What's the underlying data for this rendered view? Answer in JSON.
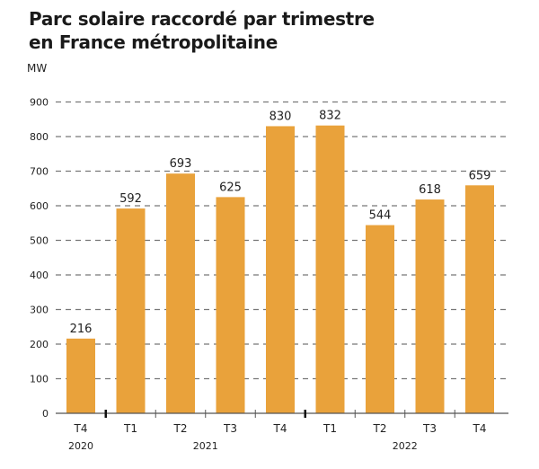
{
  "chart_data": {
    "type": "bar",
    "title_lines": [
      "Parc solaire raccordé par trimestre",
      "en France métropolitaine"
    ],
    "ylabel": "MW",
    "xlabel": "",
    "ylim": [
      0,
      900
    ],
    "yticks": [
      0,
      100,
      200,
      300,
      400,
      500,
      600,
      700,
      800,
      900
    ],
    "grid": true,
    "categories": [
      "T4",
      "T1",
      "T2",
      "T3",
      "T4",
      "T1",
      "T2",
      "T3",
      "T4"
    ],
    "values": [
      216,
      592,
      693,
      625,
      830,
      832,
      544,
      618,
      659
    ],
    "years": [
      {
        "label": "2020",
        "start": 0,
        "end": 0
      },
      {
        "label": "2021",
        "start": 1,
        "end": 4
      },
      {
        "label": "2022",
        "start": 5,
        "end": 8
      }
    ],
    "bar_color": "#E9A23B",
    "legend": "none"
  }
}
